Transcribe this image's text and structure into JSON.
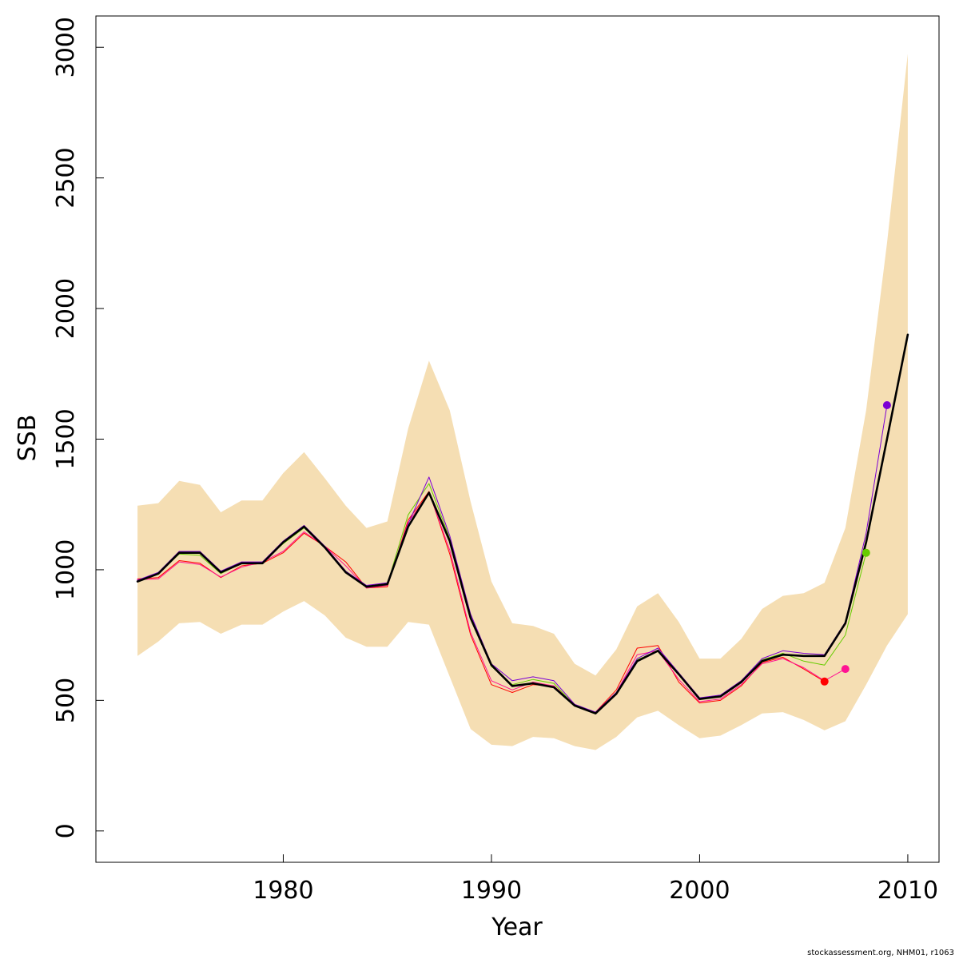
{
  "chart_data": {
    "type": "line",
    "xlabel": "Year",
    "ylabel": "SSB",
    "xlim": [
      1971,
      2011.5
    ],
    "ylim": [
      -120,
      3120
    ],
    "x_ticks": [
      1980,
      1990,
      2000,
      2010
    ],
    "y_ticks": [
      0,
      500,
      1000,
      1500,
      2000,
      2500,
      3000
    ],
    "grid": false,
    "legend": "none",
    "band": {
      "color": "#F5DEB3",
      "x": [
        1973,
        1974,
        1975,
        1976,
        1977,
        1978,
        1979,
        1980,
        1981,
        1982,
        1983,
        1984,
        1985,
        1986,
        1987,
        1988,
        1989,
        1990,
        1991,
        1992,
        1993,
        1994,
        1995,
        1996,
        1997,
        1998,
        1999,
        2000,
        2001,
        2002,
        2003,
        2004,
        2005,
        2006,
        2007,
        2008,
        2009,
        2010
      ],
      "upper": [
        1245,
        1255,
        1340,
        1325,
        1220,
        1265,
        1265,
        1370,
        1450,
        1350,
        1245,
        1160,
        1185,
        1540,
        1800,
        1610,
        1260,
        955,
        795,
        785,
        755,
        640,
        595,
        695,
        860,
        910,
        800,
        660,
        660,
        735,
        850,
        900,
        910,
        950,
        1160,
        1610,
        2250,
        2975
      ],
      "lower": [
        670,
        725,
        795,
        800,
        755,
        790,
        790,
        840,
        880,
        825,
        740,
        705,
        705,
        800,
        790,
        590,
        390,
        330,
        325,
        360,
        355,
        325,
        310,
        360,
        435,
        460,
        405,
        355,
        365,
        405,
        450,
        455,
        425,
        385,
        420,
        560,
        710,
        830
      ]
    },
    "series": [
      {
        "color": "#000000",
        "width": 2.6,
        "x": [
          1973,
          1974,
          1975,
          1976,
          1977,
          1978,
          1979,
          1980,
          1981,
          1982,
          1983,
          1984,
          1985,
          1986,
          1987,
          1988,
          1989,
          1990,
          1991,
          1992,
          1993,
          1994,
          1995,
          1996,
          1997,
          1998,
          1999,
          2000,
          2001,
          2002,
          2003,
          2004,
          2005,
          2006,
          2007,
          2008,
          2009,
          2010
        ],
        "y": [
          955,
          985,
          1065,
          1065,
          990,
          1025,
          1025,
          1105,
          1165,
          1085,
          990,
          935,
          945,
          1165,
          1295,
          1110,
          815,
          635,
          555,
          565,
          550,
          480,
          450,
          525,
          650,
          690,
          600,
          505,
          515,
          570,
          650,
          675,
          670,
          670,
          795,
          1105,
          1500,
          1900
        ]
      },
      {
        "color": "#7B00D4",
        "width": 1,
        "x": [
          1973,
          1974,
          1975,
          1976,
          1977,
          1978,
          1979,
          1980,
          1981,
          1982,
          1983,
          1984,
          1985,
          1986,
          1987,
          1988,
          1989,
          1990,
          1991,
          1992,
          1993,
          1994,
          1995,
          1996,
          1997,
          1998,
          1999,
          2000,
          2001,
          2002,
          2003,
          2004,
          2005,
          2006,
          2007,
          2008,
          2009
        ],
        "y": [
          960,
          990,
          1070,
          1070,
          995,
          1030,
          1030,
          1110,
          1170,
          1090,
          995,
          940,
          950,
          1175,
          1355,
          1130,
          830,
          640,
          575,
          590,
          575,
          485,
          455,
          530,
          660,
          700,
          605,
          510,
          520,
          575,
          660,
          690,
          680,
          675,
          800,
          1140,
          1630
        ],
        "marker_last": true
      },
      {
        "color": "#66CC00",
        "width": 1,
        "x": [
          1973,
          1974,
          1975,
          1976,
          1977,
          1978,
          1979,
          1980,
          1981,
          1982,
          1983,
          1984,
          1985,
          1986,
          1987,
          1988,
          1989,
          1990,
          1991,
          1992,
          1993,
          1994,
          1995,
          1996,
          1997,
          1998,
          1999,
          2000,
          2001,
          2002,
          2003,
          2004,
          2005,
          2006,
          2007,
          2008
        ],
        "y": [
          958,
          985,
          1060,
          1055,
          985,
          1025,
          1030,
          1100,
          1160,
          1085,
          995,
          935,
          945,
          1210,
          1330,
          1120,
          820,
          630,
          560,
          580,
          565,
          480,
          450,
          525,
          655,
          690,
          600,
          505,
          515,
          575,
          655,
          680,
          650,
          635,
          750,
          1065
        ],
        "marker_last": true
      },
      {
        "color": "#FF1493",
        "width": 1,
        "x": [
          1973,
          1974,
          1975,
          1976,
          1977,
          1978,
          1979,
          1980,
          1981,
          1982,
          1983,
          1984,
          1985,
          1986,
          1987,
          1988,
          1989,
          1990,
          1991,
          1992,
          1993,
          1994,
          1995,
          1996,
          1997,
          1998,
          1999,
          2000,
          2001,
          2002,
          2003,
          2004,
          2005,
          2006,
          2007
        ],
        "y": [
          962,
          965,
          1030,
          1020,
          972,
          1010,
          1030,
          1070,
          1145,
          1090,
          1015,
          930,
          940,
          1180,
          1295,
          1075,
          760,
          575,
          540,
          570,
          555,
          485,
          450,
          530,
          675,
          690,
          580,
          495,
          505,
          560,
          640,
          660,
          625,
          575,
          620
        ],
        "marker_last": true
      },
      {
        "color": "#FF0000",
        "width": 1,
        "x": [
          1973,
          1974,
          1975,
          1976,
          1977,
          1978,
          1979,
          1980,
          1981,
          1982,
          1983,
          1984,
          1985,
          1986,
          1987,
          1988,
          1989,
          1990,
          1991,
          1992,
          1993,
          1994,
          1995,
          1996,
          1997,
          1998,
          1999,
          2000,
          2001,
          2002,
          2003,
          2004,
          2005,
          2006
        ],
        "y": [
          965,
          970,
          1035,
          1025,
          970,
          1015,
          1025,
          1065,
          1140,
          1090,
          1030,
          930,
          935,
          1190,
          1300,
          1060,
          750,
          560,
          530,
          560,
          555,
          480,
          455,
          540,
          700,
          710,
          570,
          490,
          500,
          555,
          645,
          665,
          620,
          572
        ],
        "marker_last": true
      }
    ],
    "footer_note": "stockassessment.org, NHM01, r1063"
  }
}
